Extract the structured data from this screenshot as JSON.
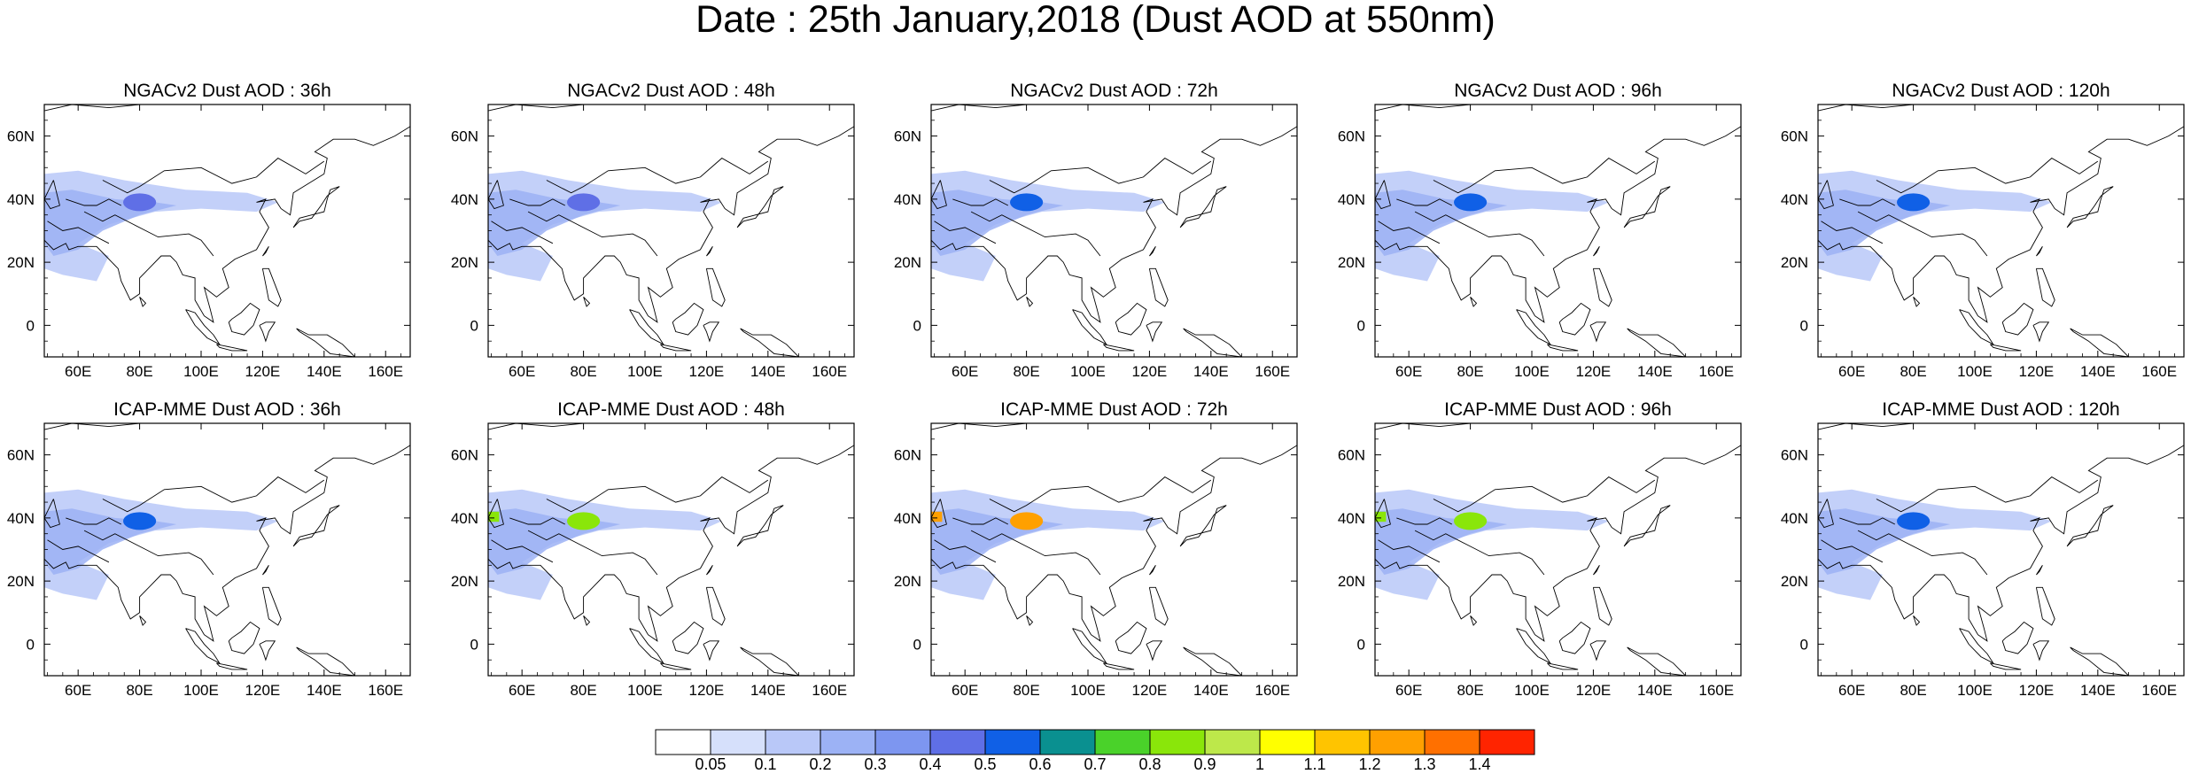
{
  "title": "Date : 25th January,2018 (Dust AOD at 550nm)",
  "map": {
    "projection": "cylindrical-equidistant",
    "lon_range": [
      49,
      168
    ],
    "lat_range": [
      -10,
      70
    ],
    "lon_ticks": [
      "60E",
      "80E",
      "100E",
      "120E",
      "140E",
      "160E"
    ],
    "lon_tick_values": [
      60,
      80,
      100,
      120,
      140,
      160
    ],
    "lat_ticks": [
      "60N",
      "40N",
      "20N",
      "0"
    ],
    "lat_tick_values": [
      60,
      40,
      20,
      0
    ],
    "coastline_color": "#000000",
    "grid": false
  },
  "panels": [
    {
      "id": "ngac-36",
      "title": "NGACv2 Dust AOD : 36h",
      "model": "NGACv2",
      "lead": "36h",
      "peak_aod": 0.4
    },
    {
      "id": "ngac-48",
      "title": "NGACv2 Dust AOD : 48h",
      "model": "NGACv2",
      "lead": "48h",
      "peak_aod": 0.4
    },
    {
      "id": "ngac-72",
      "title": "NGACv2 Dust AOD : 72h",
      "model": "NGACv2",
      "lead": "72h",
      "peak_aod": 0.5
    },
    {
      "id": "ngac-96",
      "title": "NGACv2 Dust AOD : 96h",
      "model": "NGACv2",
      "lead": "96h",
      "peak_aod": 0.5
    },
    {
      "id": "ngac-120",
      "title": "NGACv2 Dust AOD : 120h",
      "model": "NGACv2",
      "lead": "120h",
      "peak_aod": 0.5
    },
    {
      "id": "icap-36",
      "title": "ICAP-MME Dust AOD : 36h",
      "model": "ICAP-MME",
      "lead": "36h",
      "peak_aod": 0.5
    },
    {
      "id": "icap-48",
      "title": "ICAP-MME Dust AOD : 48h",
      "model": "ICAP-MME",
      "lead": "48h",
      "peak_aod": 0.8
    },
    {
      "id": "icap-72",
      "title": "ICAP-MME Dust AOD : 72h",
      "model": "ICAP-MME",
      "lead": "72h",
      "peak_aod": 1.2
    },
    {
      "id": "icap-96",
      "title": "ICAP-MME Dust AOD : 96h",
      "model": "ICAP-MME",
      "lead": "96h",
      "peak_aod": 0.8
    },
    {
      "id": "icap-120",
      "title": "ICAP-MME Dust AOD : 120h",
      "model": "ICAP-MME",
      "lead": "120h",
      "peak_aod": 0.5
    }
  ],
  "colorbar": {
    "labels": [
      "0.05",
      "0.1",
      "0.2",
      "0.3",
      "0.4",
      "0.5",
      "0.6",
      "0.7",
      "0.8",
      "0.9",
      "1",
      "1.1",
      "1.2",
      "1.3",
      "1.4"
    ],
    "colors": [
      "#ffffff",
      "#d6e0fb",
      "#b9c8f8",
      "#9cb2f5",
      "#7d96f0",
      "#5f6fe6",
      "#1060e6",
      "#0a9090",
      "#4ad22a",
      "#8ae60a",
      "#bde84a",
      "#ffff00",
      "#ffc400",
      "#ffa000",
      "#ff7000",
      "#ff2400"
    ]
  }
}
